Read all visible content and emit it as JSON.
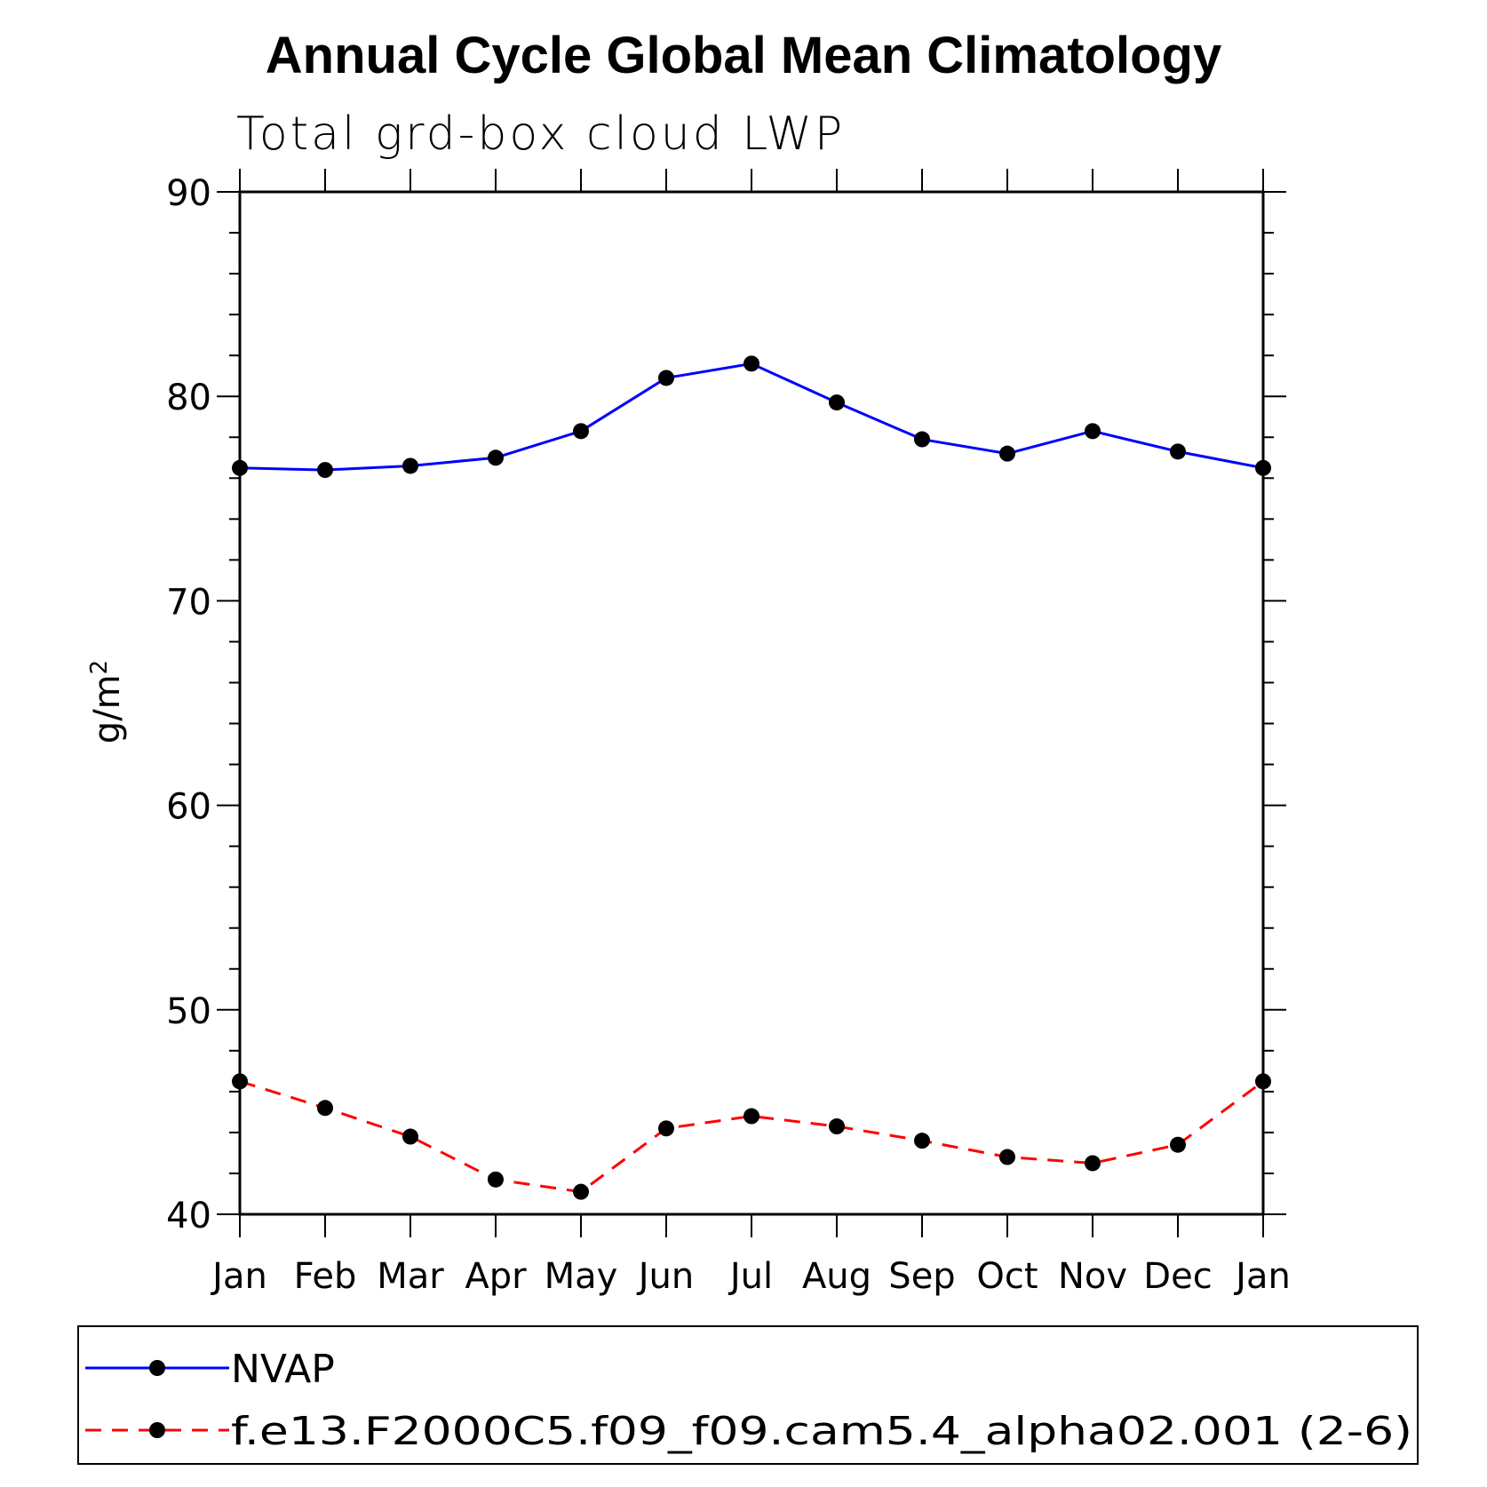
{
  "chart_data": {
    "type": "line",
    "title": "Annual Cycle Global Mean Climatology",
    "subtitle": "Total grd-box cloud LWP",
    "ylabel": "g/m",
    "ylabel_sup": "2",
    "ylim": [
      40,
      90
    ],
    "yticks": [
      40,
      50,
      60,
      70,
      80,
      90
    ],
    "yminor_step": 2,
    "categories": [
      "Jan",
      "Feb",
      "Mar",
      "Apr",
      "May",
      "Jun",
      "Jul",
      "Aug",
      "Sep",
      "Oct",
      "Nov",
      "Dec",
      "Jan"
    ],
    "series": [
      {
        "name": "NVAP",
        "color": "#0000ff",
        "dash": "solid",
        "values": [
          76.5,
          76.4,
          76.6,
          77.0,
          78.3,
          80.9,
          81.6,
          79.7,
          77.9,
          77.2,
          78.3,
          77.3,
          76.5
        ]
      },
      {
        "name": "f.e13.F2000C5.f09_f09.cam5.4_alpha02.001 (2-6)",
        "color": "#ff0000",
        "dash": "dashed",
        "values": [
          46.5,
          45.2,
          43.8,
          41.7,
          41.1,
          44.2,
          44.8,
          44.3,
          43.6,
          42.8,
          42.5,
          43.4,
          46.5
        ]
      }
    ],
    "grid": false,
    "legend_position": "bottom"
  }
}
